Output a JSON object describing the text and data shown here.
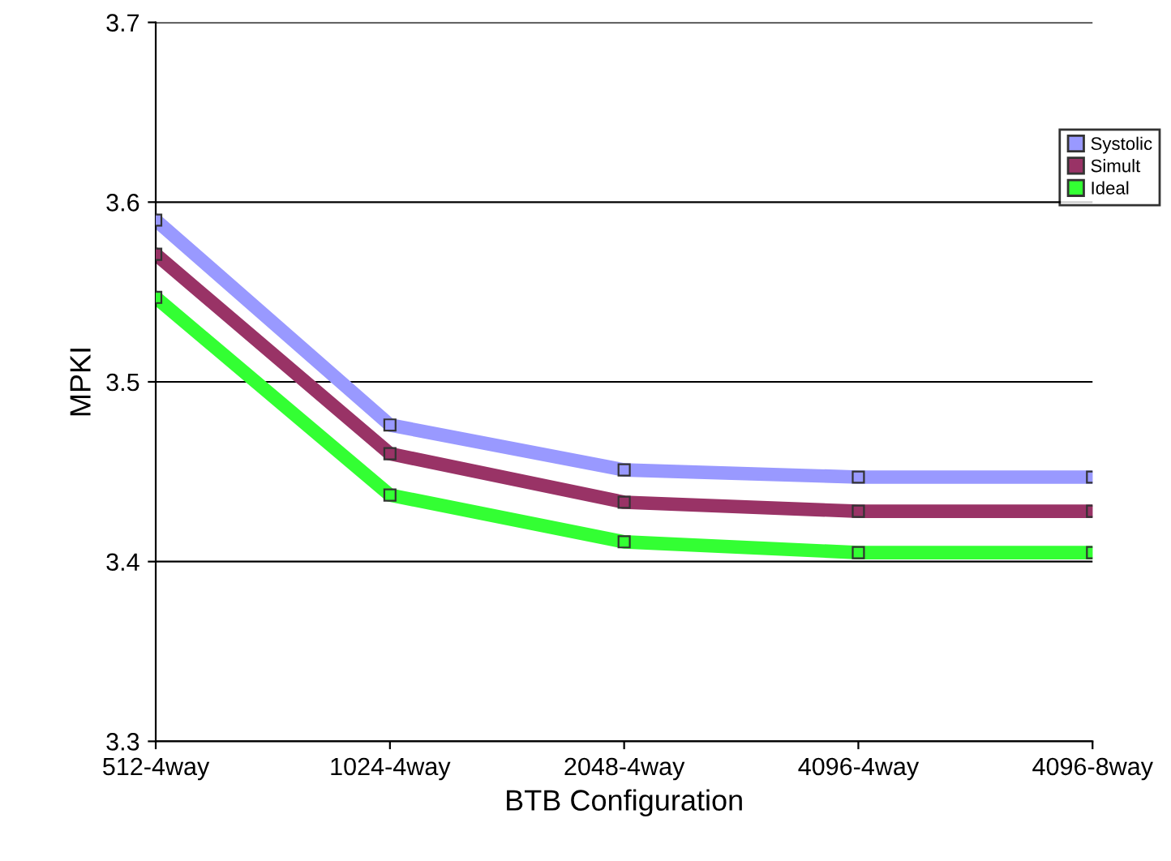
{
  "chart_data": {
    "type": "line",
    "xlabel": "BTB Configuration",
    "ylabel": "MPKI",
    "categories": [
      "512-4way",
      "1024-4way",
      "2048-4way",
      "4096-4way",
      "4096-8way"
    ],
    "series": [
      {
        "name": "Systolic",
        "color": "#9999ff",
        "values": [
          3.59,
          3.476,
          3.451,
          3.447,
          3.447
        ]
      },
      {
        "name": "Simult",
        "color": "#993366",
        "values": [
          3.571,
          3.46,
          3.433,
          3.428,
          3.428
        ]
      },
      {
        "name": "Ideal",
        "color": "#33ff33",
        "values": [
          3.547,
          3.437,
          3.411,
          3.405,
          3.405
        ]
      }
    ],
    "ylim": [
      3.3,
      3.7
    ],
    "yticks": [
      {
        "value": 3.3,
        "label": "3.3"
      },
      {
        "value": 3.4,
        "label": "3.4"
      },
      {
        "value": 3.5,
        "label": "3.5"
      },
      {
        "value": 3.6,
        "label": "3.6"
      },
      {
        "value": 3.7,
        "label": "3.7"
      }
    ],
    "grid": "y",
    "legend": "right",
    "marker": "square",
    "line_style": "solid"
  }
}
